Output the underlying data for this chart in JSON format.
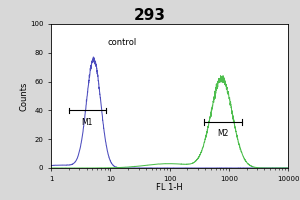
{
  "title": "293",
  "title_fontsize": 11,
  "title_fontweight": "bold",
  "xlabel": "FL 1-H",
  "ylabel": "Counts",
  "xlabel_fontsize": 6,
  "ylabel_fontsize": 6,
  "xlim_log": [
    1.0,
    10000
  ],
  "ylim": [
    0,
    100
  ],
  "yticks": [
    0,
    20,
    40,
    60,
    80,
    100
  ],
  "control_label": "control",
  "m1_label": "M1",
  "m2_label": "M2",
  "blue_color": "#4444bb",
  "green_color": "#44bb44",
  "bg_color": "#ffffff",
  "outer_bg": "#d8d8d8",
  "blue_peak_log": 0.72,
  "blue_peak_height": 75,
  "blue_sigma_log": 0.12,
  "green_peak_log": 2.88,
  "green_peak_height": 62,
  "green_sigma_log": 0.18,
  "m1_x1_log": 0.3,
  "m1_x2_log": 0.92,
  "m1_y": 40,
  "m2_x1_log": 2.58,
  "m2_x2_log": 3.22,
  "m2_y": 32,
  "control_x_log": 0.95,
  "control_y": 90
}
